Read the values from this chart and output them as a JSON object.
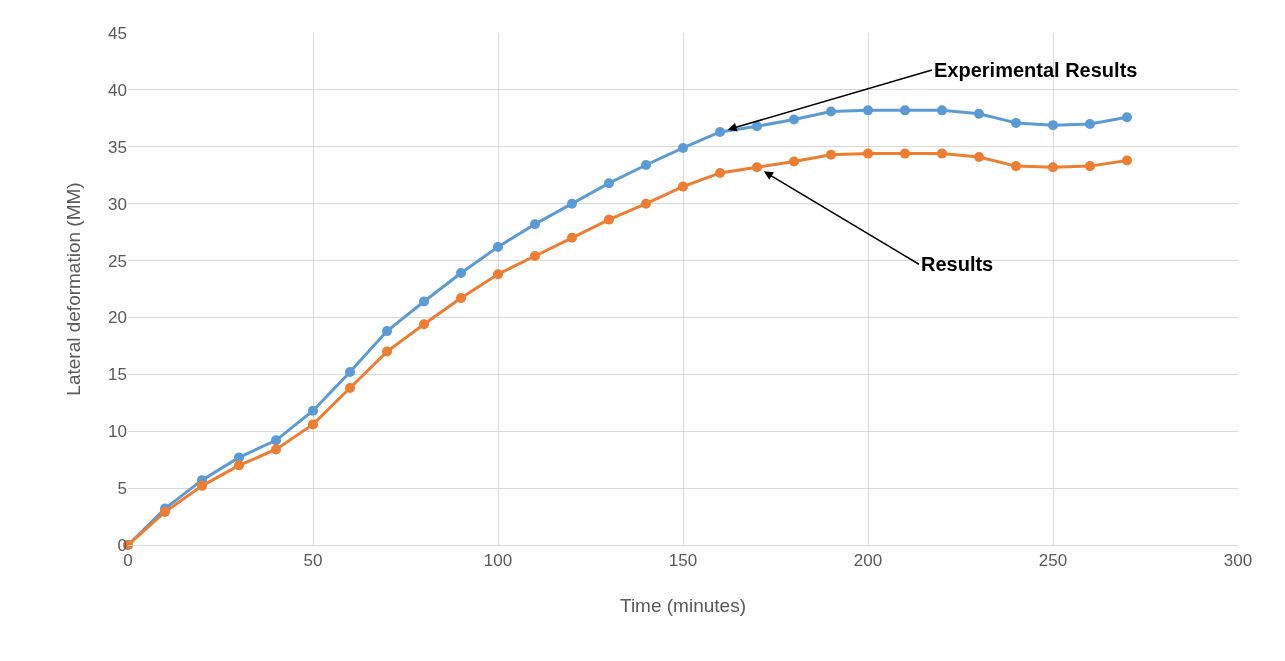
{
  "chart_data": {
    "type": "line",
    "xlabel": "Time (minutes)",
    "ylabel": "Lateral deformation (MM)",
    "x": [
      0,
      10,
      20,
      30,
      40,
      50,
      60,
      70,
      80,
      90,
      100,
      110,
      120,
      130,
      140,
      150,
      160,
      170,
      180,
      190,
      200,
      210,
      220,
      230,
      240,
      250,
      260,
      270
    ],
    "series": [
      {
        "color": "#5b9bd5",
        "values": [
          0,
          3.2,
          5.7,
          7.7,
          9.2,
          11.8,
          15.2,
          18.8,
          21.4,
          23.9,
          26.2,
          28.2,
          30.0,
          31.8,
          33.4,
          34.9,
          36.3,
          36.8,
          37.4,
          38.1,
          38.2,
          38.2,
          38.2,
          37.9,
          37.1,
          36.9,
          37.0,
          37.6
        ]
      },
      {
        "color": "#ed7d31",
        "values": [
          0,
          2.9,
          5.2,
          7.0,
          8.4,
          10.6,
          13.8,
          17.0,
          19.4,
          21.7,
          23.8,
          25.4,
          27.0,
          28.6,
          30.0,
          31.5,
          32.7,
          33.2,
          33.7,
          34.3,
          34.4,
          34.4,
          34.4,
          34.1,
          33.3,
          33.2,
          33.3,
          33.8
        ]
      }
    ],
    "annotations": [
      {
        "text": "Experimental Results",
        "x": 160,
        "y": 36.3
      },
      {
        "text": "Results",
        "x": 170,
        "y": 33.2
      }
    ],
    "xlim": [
      0,
      300
    ],
    "xticks": [
      0,
      50,
      100,
      150,
      200,
      250,
      300
    ],
    "ylim": [
      0,
      45
    ],
    "yticks": [
      0,
      5,
      10,
      15,
      20,
      25,
      30,
      35,
      40,
      45
    ],
    "grid": true,
    "marker": "circle",
    "line_style": "solid"
  }
}
